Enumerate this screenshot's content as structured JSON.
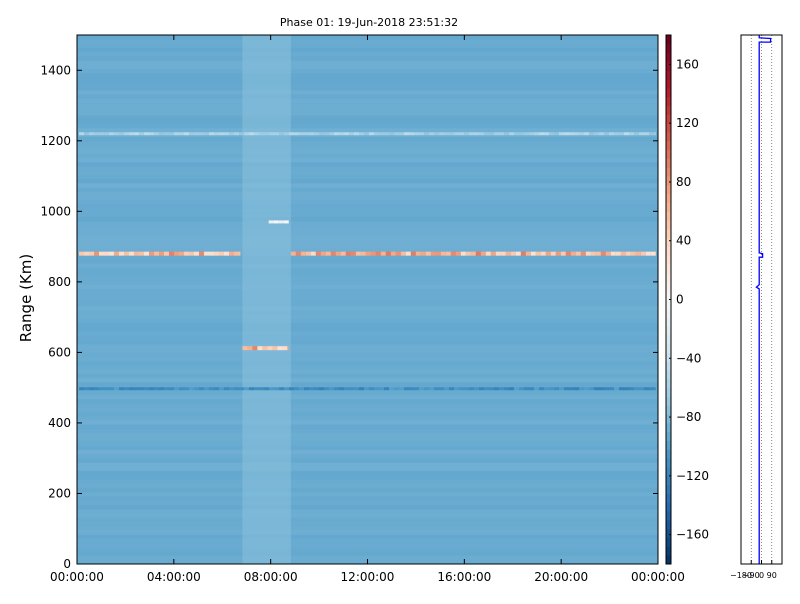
{
  "chart_data": [
    {
      "type": "heatmap",
      "title": "Phase 01: 19-Jun-2018 23:51:32",
      "xlabel": "",
      "ylabel": "Range (Km)",
      "x_range": [
        "00:00:00",
        "24:00:00"
      ],
      "ylim": [
        0,
        1500
      ],
      "x_ticks": [
        "00:00:00",
        "04:00:00",
        "08:00:00",
        "12:00:00",
        "16:00:00",
        "20:00:00",
        "00:00:00"
      ],
      "y_ticks": [
        0,
        200,
        400,
        600,
        800,
        1000,
        1200,
        1400
      ],
      "background_phase": -90,
      "features": [
        {
          "range_km": 880,
          "start": "00:05:00",
          "end": "06:45:00",
          "phase": 60
        },
        {
          "range_km": 880,
          "start": "08:50:00",
          "end": "23:55:00",
          "phase": 60
        },
        {
          "range_km": 612,
          "start": "06:50:00",
          "end": "08:45:00",
          "phase": 60
        },
        {
          "range_km": 1220,
          "start": "00:05:00",
          "end": "23:55:00",
          "phase": -60
        },
        {
          "range_km": 497,
          "start": "00:05:00",
          "end": "23:55:00",
          "phase": -110
        },
        {
          "range_km": 970,
          "start": "07:55:00",
          "end": "08:45:00",
          "phase": 0
        }
      ],
      "colormap": "RdBu_r",
      "colorbar": {
        "vmin": -180,
        "vmax": 180,
        "ticks": [
          -160,
          -120,
          -80,
          -40,
          0,
          40,
          80,
          120,
          160
        ]
      }
    },
    {
      "type": "line",
      "xlim": [
        -180,
        180
      ],
      "x_ticks": [
        "−180",
        "−90",
        "0",
        "90"
      ],
      "ylim": [
        0,
        1500
      ],
      "series_color": "#0000ff",
      "points": [
        {
          "x": -20,
          "y": 0
        },
        {
          "x": -20,
          "y": 780
        },
        {
          "x": -45,
          "y": 785
        },
        {
          "x": -20,
          "y": 792
        },
        {
          "x": -20,
          "y": 870
        },
        {
          "x": 10,
          "y": 870
        },
        {
          "x": 10,
          "y": 880
        },
        {
          "x": -20,
          "y": 882
        },
        {
          "x": -20,
          "y": 1480
        },
        {
          "x": 80,
          "y": 1480
        },
        {
          "x": 80,
          "y": 1490
        },
        {
          "x": -20,
          "y": 1492
        },
        {
          "x": -20,
          "y": 1500
        }
      ]
    }
  ]
}
